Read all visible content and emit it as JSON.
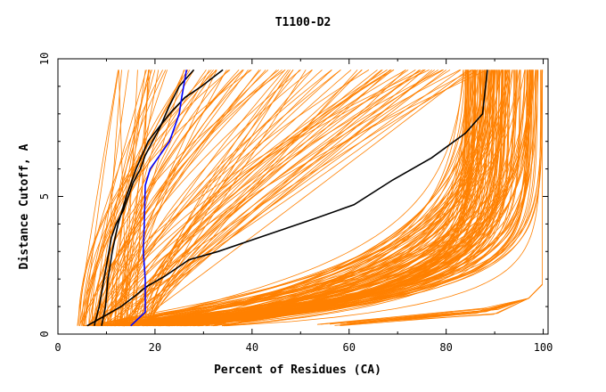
{
  "chart_data": {
    "type": "line",
    "title": "T1100-D2",
    "xlabel": "Percent of Residues (CA)",
    "ylabel": "Distance Cutoff, A",
    "xlim": [
      0,
      101
    ],
    "ylim": [
      0,
      10
    ],
    "x_ticks": [
      0,
      20,
      40,
      60,
      80,
      100
    ],
    "y_ticks": [
      0,
      5,
      10
    ],
    "grid": false,
    "colors": {
      "background_models": "#ff8000",
      "highlight_black": "#000000",
      "highlight_blue": "#0000ff"
    },
    "series": [
      {
        "color": "#000000",
        "x": [
          6,
          10,
          13,
          16,
          18,
          22,
          27,
          33,
          43,
          53,
          61,
          69,
          77,
          84,
          87.5,
          88.5
        ],
        "y": [
          0.3,
          0.7,
          1.0,
          1.4,
          1.7,
          2.1,
          2.7,
          3.0,
          3.6,
          4.2,
          4.7,
          5.6,
          6.4,
          7.3,
          8.0,
          9.6
        ]
      },
      {
        "color": "#000000",
        "x": [
          9,
          9.8,
          10.3,
          11.2,
          12.4,
          14.1,
          16.1,
          18.6,
          21.2,
          23.5,
          26.2,
          29.6,
          34
        ],
        "y": [
          0.3,
          1.0,
          2.0,
          3.0,
          4.0,
          5.0,
          6.0,
          7.0,
          7.6,
          8.1,
          8.6,
          9.0,
          9.6
        ]
      },
      {
        "color": "#000000",
        "x": [
          7.5,
          8.5,
          9.5,
          10.5,
          11,
          12,
          13.5,
          14.5,
          15.5,
          17,
          18,
          19.5,
          21,
          23,
          25,
          28
        ],
        "y": [
          0.3,
          1.0,
          2.0,
          3.0,
          3.5,
          4.0,
          4.5,
          5.0,
          5.5,
          6.0,
          6.5,
          7.0,
          7.5,
          8.3,
          9.0,
          9.6
        ]
      },
      {
        "color": "#0000ff",
        "x": [
          15,
          18,
          18,
          17.6,
          17.8,
          18,
          19,
          21,
          23,
          24,
          25,
          25.5,
          26.5
        ],
        "y": [
          0.3,
          0.8,
          2.0,
          3.0,
          4.0,
          5.4,
          6.0,
          6.5,
          7.0,
          7.5,
          8.0,
          8.6,
          9.6
        ]
      }
    ]
  }
}
